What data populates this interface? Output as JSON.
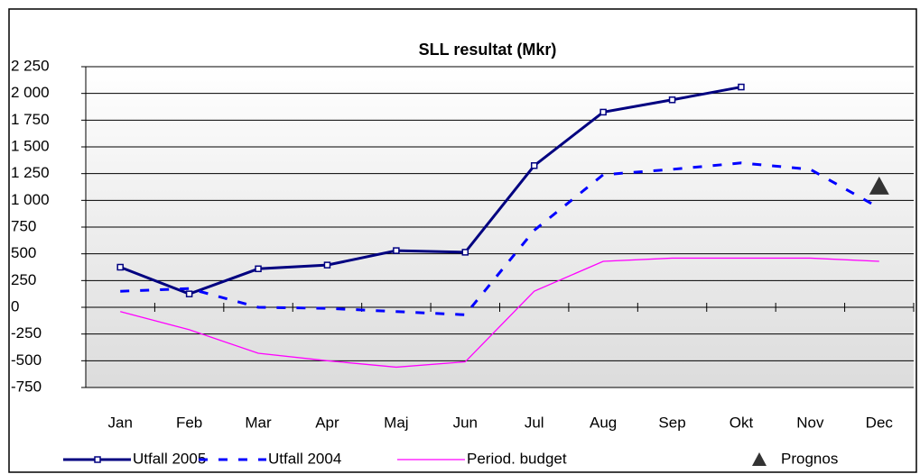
{
  "chart_data": {
    "type": "line",
    "title": "SLL resultat (Mkr)",
    "categories": [
      "Jan",
      "Feb",
      "Mar",
      "Apr",
      "Maj",
      "Jun",
      "Jul",
      "Aug",
      "Sep",
      "Okt",
      "Nov",
      "Dec"
    ],
    "series": [
      {
        "name": "Utfall 2005",
        "color": "#000080",
        "line_style": "solid",
        "marker": "square",
        "values": [
          375,
          125,
          360,
          395,
          530,
          515,
          1325,
          1825,
          1940,
          2060,
          null,
          null
        ]
      },
      {
        "name": "Utfall 2004",
        "color": "#0000ff",
        "line_style": "dashed",
        "values": [
          150,
          175,
          0,
          -10,
          -40,
          -70,
          720,
          1240,
          1290,
          1350,
          1290,
          930
        ]
      },
      {
        "name": "Period. budget",
        "color": "#ff00ff",
        "line_style": "thin",
        "values": [
          -40,
          -210,
          -430,
          -500,
          -560,
          -510,
          150,
          430,
          460,
          460,
          460,
          430
        ]
      },
      {
        "name": "Prognos",
        "color": "#333333",
        "line_style": "none",
        "marker": "triangle",
        "values": [
          null,
          null,
          null,
          null,
          null,
          null,
          null,
          null,
          null,
          null,
          null,
          1130
        ]
      }
    ],
    "ylim": [
      -750,
      2250
    ],
    "yticks": [
      {
        "value": -750,
        "label": "-750"
      },
      {
        "value": -500,
        "label": "-500"
      },
      -250,
      0,
      250,
      500,
      750,
      {
        "value": 1000,
        "label": "1 000"
      },
      {
        "value": 1250,
        "label": "1 250"
      },
      {
        "value": 1500,
        "label": "1 500"
      },
      {
        "value": 1750,
        "label": "1 750"
      },
      {
        "value": 2000,
        "label": "2 000"
      },
      {
        "value": 2250,
        "label": "2 250"
      }
    ],
    "grid": true,
    "legend": "bottom"
  }
}
